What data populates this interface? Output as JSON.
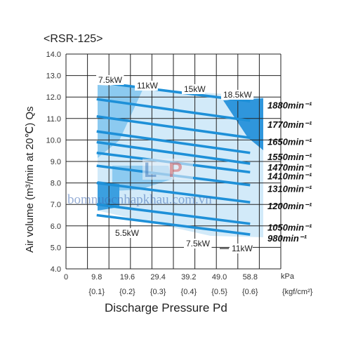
{
  "chart_data": {
    "type": "line",
    "title": "<RSR-125>",
    "xlabel": "Discharge Pressure Pd",
    "ylabel": "Air volume (m³/min at 20℃) Qs",
    "x_unit": "kPa",
    "x_unit_secondary": "{kgf/cm²}",
    "xlim": [
      0,
      68.6
    ],
    "ylim": [
      4.0,
      14.0
    ],
    "x_ticks": [
      "0",
      "9.8",
      "19.6",
      "29.4",
      "39.2",
      "49.0",
      "58.8"
    ],
    "x_ticks_secondary": [
      "{0.1}",
      "{0.2}",
      "{0.3}",
      "{0.4}",
      "{0.5}",
      "{0.6}"
    ],
    "y_ticks": [
      "4.0",
      "5.0",
      "6.0",
      "7.0",
      "8.0",
      "9.0",
      "10.0",
      "11.0",
      "12.0",
      "13.0",
      "14.0"
    ],
    "grid": true,
    "series": [
      {
        "name": "1880min⁻¹",
        "x": [
          9.8,
          58.8
        ],
        "y": [
          12.7,
          11.8
        ]
      },
      {
        "name": "1770min⁻¹",
        "x": [
          9.8,
          58.8
        ],
        "y": [
          11.9,
          10.9
        ]
      },
      {
        "name": "1650min⁻¹",
        "x": [
          9.8,
          58.8
        ],
        "y": [
          11.1,
          10.1
        ]
      },
      {
        "name": "1550min⁻¹",
        "x": [
          9.8,
          58.8
        ],
        "y": [
          10.4,
          9.4
        ]
      },
      {
        "name": "1470min⁻¹",
        "x": [
          9.8,
          58.8
        ],
        "y": [
          9.9,
          8.9
        ]
      },
      {
        "name": "1410min⁻¹",
        "x": [
          9.8,
          58.8
        ],
        "y": [
          9.4,
          8.5
        ]
      },
      {
        "name": "1310min⁻¹",
        "x": [
          9.8,
          58.8
        ],
        "y": [
          8.8,
          7.9
        ]
      },
      {
        "name": "1200min⁻¹",
        "x": [
          9.8,
          58.8
        ],
        "y": [
          8.0,
          7.1
        ]
      },
      {
        "name": "1050min⁻¹",
        "x": [
          9.8,
          58.8
        ],
        "y": [
          7.0,
          6.1
        ]
      },
      {
        "name": "980min⁻¹",
        "x": [
          9.8,
          58.8
        ],
        "y": [
          6.5,
          5.6
        ]
      }
    ],
    "power_annotations": [
      "7.5kW",
      "11kW",
      "15kW",
      "18.5kW",
      "5.5kW",
      "7.5kW",
      "11kW"
    ]
  },
  "watermark": "bomnuocnhapkhau.com.vn",
  "colors": {
    "band_dark": "#2f96dc",
    "band_mid": "#6bbbec",
    "band_light": "#cfe8f8",
    "line": "#1e90d8",
    "grid": "#222222"
  }
}
